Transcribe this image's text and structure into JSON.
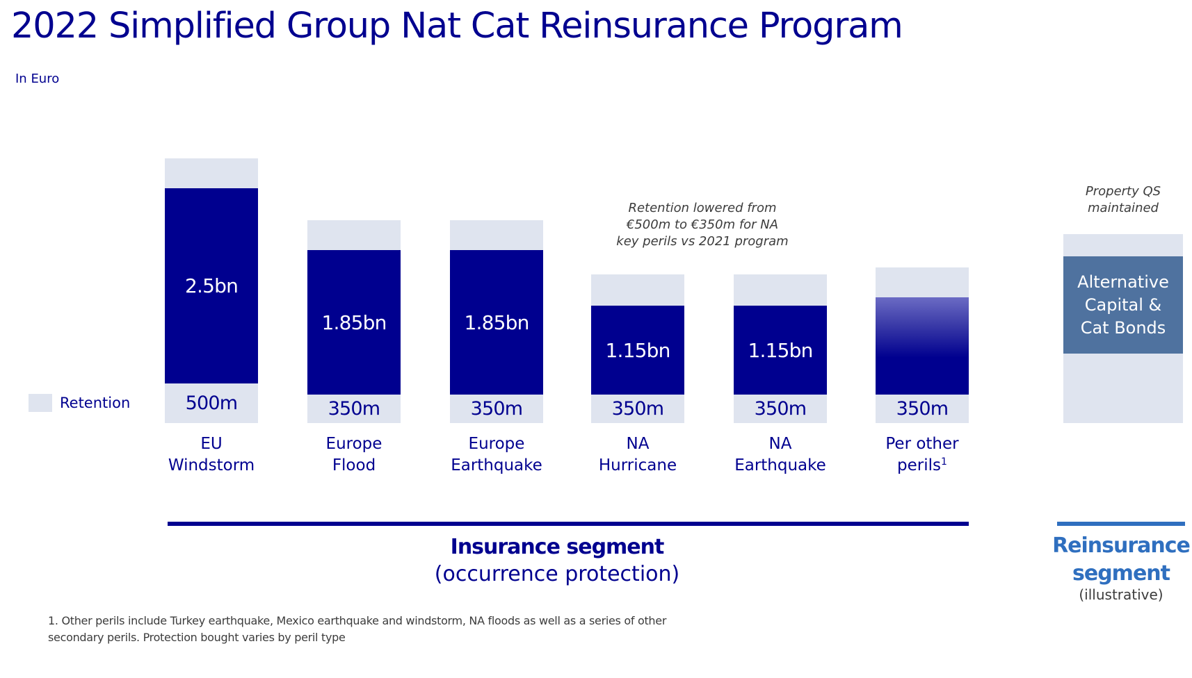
{
  "title": "2022 Simplified Group Nat Cat Reinsurance Program",
  "subtitle": "In Euro",
  "legend": {
    "label": "Retention",
    "color": "#dfe4ef"
  },
  "colors": {
    "cover": "#00008f",
    "retention": "#dfe4ef",
    "alternative_capital": "#4f729f",
    "reinsurance_segment": "#2f6fbf"
  },
  "chart_data": {
    "type": "bar",
    "categories": [
      [
        "EU",
        "Windstorm"
      ],
      [
        "Europe",
        "Flood"
      ],
      [
        "Europe",
        "Earthquake"
      ],
      [
        "NA",
        "Hurricane"
      ],
      [
        "NA",
        "Earthquake"
      ],
      [
        "Per other",
        "perils"
      ]
    ],
    "series": [
      {
        "name": "Retention",
        "values": [
          500,
          350,
          350,
          350,
          350,
          350
        ],
        "labels": [
          "500m",
          "350m",
          "350m",
          "350m",
          "350m",
          "350m"
        ]
      },
      {
        "name": "",
        "values": [
          2500,
          1850,
          1850,
          1150,
          1150,
          null
        ],
        "labels": [
          "2.5bn",
          "1.85bn",
          "1.85bn",
          "1.15bn",
          "1.15bn",
          ""
        ]
      }
    ],
    "unit": "EUR m",
    "footnote_marker": "1",
    "annotation": [
      "Retention lowered from",
      "€500m to €350m for NA",
      "key perils vs 2021 program"
    ]
  },
  "reinsurance": {
    "note": [
      "Property QS",
      "maintained"
    ],
    "box_lines": [
      "Alternative",
      "Capital &",
      "Cat Bonds"
    ]
  },
  "segments": {
    "insurance": {
      "title": "Insurance segment",
      "subtitle": "(occurrence protection)"
    },
    "reinsurance": {
      "title": [
        "Reinsurance",
        "segment"
      ],
      "subtitle": "(illustrative)"
    }
  },
  "footnote": [
    "1. Other perils include Turkey earthquake, Mexico earthquake and windstorm, NA floods as well as a series of other",
    "secondary perils. Protection bought varies by peril type"
  ]
}
